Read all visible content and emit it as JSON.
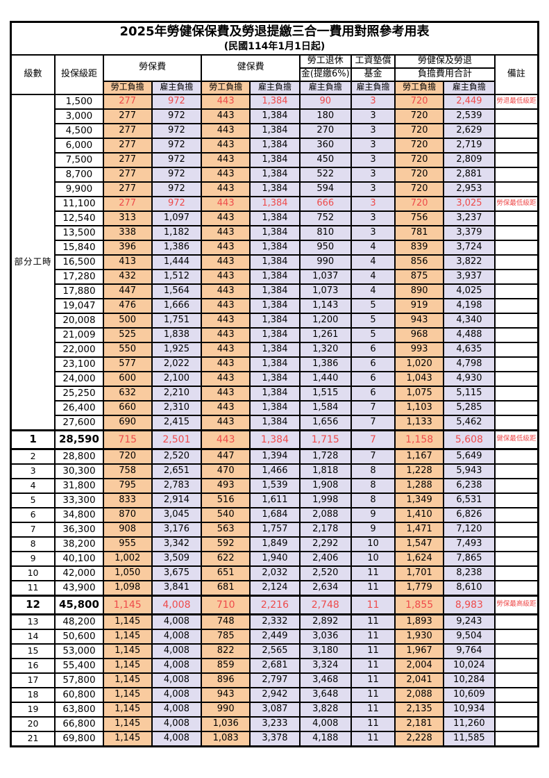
{
  "title": "2025年勞健保保費及勞退提繳三合一費用對照參考用表",
  "subtitle": "(民國114年1月1日起)",
  "colors": {
    "employee_bg": "#F9CB9F",
    "employer_bg": "#E0DDF0",
    "red_text": "#EE4A4A"
  },
  "header": {
    "level": "級數",
    "bracket": "投保級距",
    "labor_fee": "勞保費",
    "health_fee": "健保費",
    "pension_line1": "勞工退休",
    "pension_line2": "金(提繳6%)",
    "wage_fund_line1": "工資墊償",
    "wage_fund_line2": "基金",
    "total_line1": "勞健保及勞退",
    "total_line2": "負擔費用合計",
    "remark": "備註",
    "employee": "勞工負擔",
    "employer": "雇主負擔",
    "part_time_label": "部分工時"
  },
  "rows": [
    {
      "level": "",
      "bracket": "1,500",
      "v": [
        "277",
        "972",
        "443",
        "1,384",
        "90",
        "3",
        "720",
        "2,449"
      ],
      "remark": "勞退最低級距",
      "style": "red"
    },
    {
      "level": "",
      "bracket": "3,000",
      "v": [
        "277",
        "972",
        "443",
        "1,384",
        "180",
        "3",
        "720",
        "2,539"
      ],
      "remark": "",
      "style": ""
    },
    {
      "level": "",
      "bracket": "4,500",
      "v": [
        "277",
        "972",
        "443",
        "1,384",
        "270",
        "3",
        "720",
        "2,629"
      ],
      "remark": "",
      "style": ""
    },
    {
      "level": "",
      "bracket": "6,000",
      "v": [
        "277",
        "972",
        "443",
        "1,384",
        "360",
        "3",
        "720",
        "2,719"
      ],
      "remark": "",
      "style": ""
    },
    {
      "level": "",
      "bracket": "7,500",
      "v": [
        "277",
        "972",
        "443",
        "1,384",
        "450",
        "3",
        "720",
        "2,809"
      ],
      "remark": "",
      "style": ""
    },
    {
      "level": "",
      "bracket": "8,700",
      "v": [
        "277",
        "972",
        "443",
        "1,384",
        "522",
        "3",
        "720",
        "2,881"
      ],
      "remark": "",
      "style": ""
    },
    {
      "level": "",
      "bracket": "9,900",
      "v": [
        "277",
        "972",
        "443",
        "1,384",
        "594",
        "3",
        "720",
        "2,953"
      ],
      "remark": "",
      "style": ""
    },
    {
      "level": "",
      "bracket": "11,100",
      "v": [
        "277",
        "972",
        "443",
        "1,384",
        "666",
        "3",
        "720",
        "3,025"
      ],
      "remark": "勞保最低級距",
      "style": "red"
    },
    {
      "level": "",
      "bracket": "12,540",
      "v": [
        "313",
        "1,097",
        "443",
        "1,384",
        "752",
        "3",
        "756",
        "3,237"
      ],
      "remark": "",
      "style": ""
    },
    {
      "level": "",
      "bracket": "13,500",
      "v": [
        "338",
        "1,182",
        "443",
        "1,384",
        "810",
        "3",
        "781",
        "3,379"
      ],
      "remark": "",
      "style": ""
    },
    {
      "level": "",
      "bracket": "15,840",
      "v": [
        "396",
        "1,386",
        "443",
        "1,384",
        "950",
        "4",
        "839",
        "3,724"
      ],
      "remark": "",
      "style": ""
    },
    {
      "level": "",
      "bracket": "16,500",
      "v": [
        "413",
        "1,444",
        "443",
        "1,384",
        "990",
        "4",
        "856",
        "3,822"
      ],
      "remark": "",
      "style": ""
    },
    {
      "level": "",
      "bracket": "17,280",
      "v": [
        "432",
        "1,512",
        "443",
        "1,384",
        "1,037",
        "4",
        "875",
        "3,937"
      ],
      "remark": "",
      "style": ""
    },
    {
      "level": "",
      "bracket": "17,880",
      "v": [
        "447",
        "1,564",
        "443",
        "1,384",
        "1,073",
        "4",
        "890",
        "4,025"
      ],
      "remark": "",
      "style": ""
    },
    {
      "level": "",
      "bracket": "19,047",
      "v": [
        "476",
        "1,666",
        "443",
        "1,384",
        "1,143",
        "5",
        "919",
        "4,198"
      ],
      "remark": "",
      "style": ""
    },
    {
      "level": "",
      "bracket": "20,008",
      "v": [
        "500",
        "1,751",
        "443",
        "1,384",
        "1,200",
        "5",
        "943",
        "4,340"
      ],
      "remark": "",
      "style": ""
    },
    {
      "level": "",
      "bracket": "21,009",
      "v": [
        "525",
        "1,838",
        "443",
        "1,384",
        "1,261",
        "5",
        "968",
        "4,488"
      ],
      "remark": "",
      "style": ""
    },
    {
      "level": "",
      "bracket": "22,000",
      "v": [
        "550",
        "1,925",
        "443",
        "1,384",
        "1,320",
        "6",
        "993",
        "4,635"
      ],
      "remark": "",
      "style": ""
    },
    {
      "level": "",
      "bracket": "23,100",
      "v": [
        "577",
        "2,022",
        "443",
        "1,384",
        "1,386",
        "6",
        "1,020",
        "4,798"
      ],
      "remark": "",
      "style": ""
    },
    {
      "level": "",
      "bracket": "24,000",
      "v": [
        "600",
        "2,100",
        "443",
        "1,384",
        "1,440",
        "6",
        "1,043",
        "4,930"
      ],
      "remark": "",
      "style": ""
    },
    {
      "level": "",
      "bracket": "25,250",
      "v": [
        "632",
        "2,210",
        "443",
        "1,384",
        "1,515",
        "6",
        "1,075",
        "5,115"
      ],
      "remark": "",
      "style": ""
    },
    {
      "level": "",
      "bracket": "26,400",
      "v": [
        "660",
        "2,310",
        "443",
        "1,384",
        "1,584",
        "7",
        "1,103",
        "5,285"
      ],
      "remark": "",
      "style": ""
    },
    {
      "level": "",
      "bracket": "27,600",
      "v": [
        "690",
        "2,415",
        "443",
        "1,384",
        "1,656",
        "7",
        "1,133",
        "5,462"
      ],
      "remark": "",
      "style": ""
    },
    {
      "level": "1",
      "bracket": "28,590",
      "v": [
        "715",
        "2,501",
        "443",
        "1,384",
        "1,715",
        "7",
        "1,158",
        "5,608"
      ],
      "remark": "健保最低級距",
      "style": "boldred"
    },
    {
      "level": "2",
      "bracket": "28,800",
      "v": [
        "720",
        "2,520",
        "447",
        "1,394",
        "1,728",
        "7",
        "1,167",
        "5,649"
      ],
      "remark": "",
      "style": ""
    },
    {
      "level": "3",
      "bracket": "30,300",
      "v": [
        "758",
        "2,651",
        "470",
        "1,466",
        "1,818",
        "8",
        "1,228",
        "5,943"
      ],
      "remark": "",
      "style": ""
    },
    {
      "level": "4",
      "bracket": "31,800",
      "v": [
        "795",
        "2,783",
        "493",
        "1,539",
        "1,908",
        "8",
        "1,288",
        "6,238"
      ],
      "remark": "",
      "style": ""
    },
    {
      "level": "5",
      "bracket": "33,300",
      "v": [
        "833",
        "2,914",
        "516",
        "1,611",
        "1,998",
        "8",
        "1,349",
        "6,531"
      ],
      "remark": "",
      "style": ""
    },
    {
      "level": "6",
      "bracket": "34,800",
      "v": [
        "870",
        "3,045",
        "540",
        "1,684",
        "2,088",
        "9",
        "1,410",
        "6,826"
      ],
      "remark": "",
      "style": ""
    },
    {
      "level": "7",
      "bracket": "36,300",
      "v": [
        "908",
        "3,176",
        "563",
        "1,757",
        "2,178",
        "9",
        "1,471",
        "7,120"
      ],
      "remark": "",
      "style": ""
    },
    {
      "level": "8",
      "bracket": "38,200",
      "v": [
        "955",
        "3,342",
        "592",
        "1,849",
        "2,292",
        "10",
        "1,547",
        "7,493"
      ],
      "remark": "",
      "style": ""
    },
    {
      "level": "9",
      "bracket": "40,100",
      "v": [
        "1,002",
        "3,509",
        "622",
        "1,940",
        "2,406",
        "10",
        "1,624",
        "7,865"
      ],
      "remark": "",
      "style": ""
    },
    {
      "level": "10",
      "bracket": "42,000",
      "v": [
        "1,050",
        "3,675",
        "651",
        "2,032",
        "2,520",
        "11",
        "1,701",
        "8,238"
      ],
      "remark": "",
      "style": ""
    },
    {
      "level": "11",
      "bracket": "43,900",
      "v": [
        "1,098",
        "3,841",
        "681",
        "2,124",
        "2,634",
        "11",
        "1,779",
        "8,610"
      ],
      "remark": "",
      "style": ""
    },
    {
      "level": "12",
      "bracket": "45,800",
      "v": [
        "1,145",
        "4,008",
        "710",
        "2,216",
        "2,748",
        "11",
        "1,855",
        "8,983"
      ],
      "remark": "勞保最高級距",
      "style": "boldred"
    },
    {
      "level": "13",
      "bracket": "48,200",
      "v": [
        "1,145",
        "4,008",
        "748",
        "2,332",
        "2,892",
        "11",
        "1,893",
        "9,243"
      ],
      "remark": "",
      "style": ""
    },
    {
      "level": "14",
      "bracket": "50,600",
      "v": [
        "1,145",
        "4,008",
        "785",
        "2,449",
        "3,036",
        "11",
        "1,930",
        "9,504"
      ],
      "remark": "",
      "style": ""
    },
    {
      "level": "15",
      "bracket": "53,000",
      "v": [
        "1,145",
        "4,008",
        "822",
        "2,565",
        "3,180",
        "11",
        "1,967",
        "9,764"
      ],
      "remark": "",
      "style": ""
    },
    {
      "level": "16",
      "bracket": "55,400",
      "v": [
        "1,145",
        "4,008",
        "859",
        "2,681",
        "3,324",
        "11",
        "2,004",
        "10,024"
      ],
      "remark": "",
      "style": ""
    },
    {
      "level": "17",
      "bracket": "57,800",
      "v": [
        "1,145",
        "4,008",
        "896",
        "2,797",
        "3,468",
        "11",
        "2,041",
        "10,284"
      ],
      "remark": "",
      "style": ""
    },
    {
      "level": "18",
      "bracket": "60,800",
      "v": [
        "1,145",
        "4,008",
        "943",
        "2,942",
        "3,648",
        "11",
        "2,088",
        "10,609"
      ],
      "remark": "",
      "style": ""
    },
    {
      "level": "19",
      "bracket": "63,800",
      "v": [
        "1,145",
        "4,008",
        "990",
        "3,087",
        "3,828",
        "11",
        "2,135",
        "10,934"
      ],
      "remark": "",
      "style": ""
    },
    {
      "level": "20",
      "bracket": "66,800",
      "v": [
        "1,145",
        "4,008",
        "1,036",
        "3,233",
        "4,008",
        "11",
        "2,181",
        "11,260"
      ],
      "remark": "",
      "style": ""
    },
    {
      "level": "21",
      "bracket": "69,800",
      "v": [
        "1,145",
        "4,008",
        "1,083",
        "3,378",
        "4,188",
        "11",
        "2,228",
        "11,585"
      ],
      "remark": "",
      "style": ""
    }
  ],
  "part_time_row_span": 23
}
